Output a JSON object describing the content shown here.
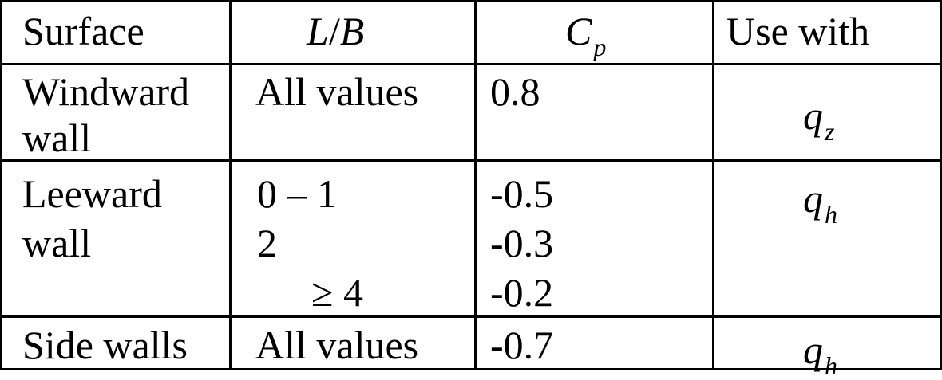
{
  "table": {
    "headers": {
      "surface": "Surface",
      "lb_left": "L",
      "lb_slash": "/",
      "lb_right": "B",
      "cp_base": "C",
      "cp_sub": "p",
      "use_with": "Use with"
    },
    "rows": [
      {
        "surface_line1": "Windward",
        "surface_line2": "wall",
        "lb": [
          "All values"
        ],
        "cp": [
          "0.8"
        ],
        "use_base": "q",
        "use_sub": "z"
      },
      {
        "surface_line1": "Leeward",
        "surface_line2": "wall",
        "lb": [
          "0 – 1",
          "2",
          "≥ 4"
        ],
        "cp": [
          "-0.5",
          "-0.3",
          "-0.2"
        ],
        "use_base": "q",
        "use_sub": "h"
      },
      {
        "surface_line1": "Side walls",
        "lb": [
          "All values"
        ],
        "cp": [
          "-0.7"
        ],
        "use_base": "q",
        "use_sub": "h"
      }
    ]
  }
}
